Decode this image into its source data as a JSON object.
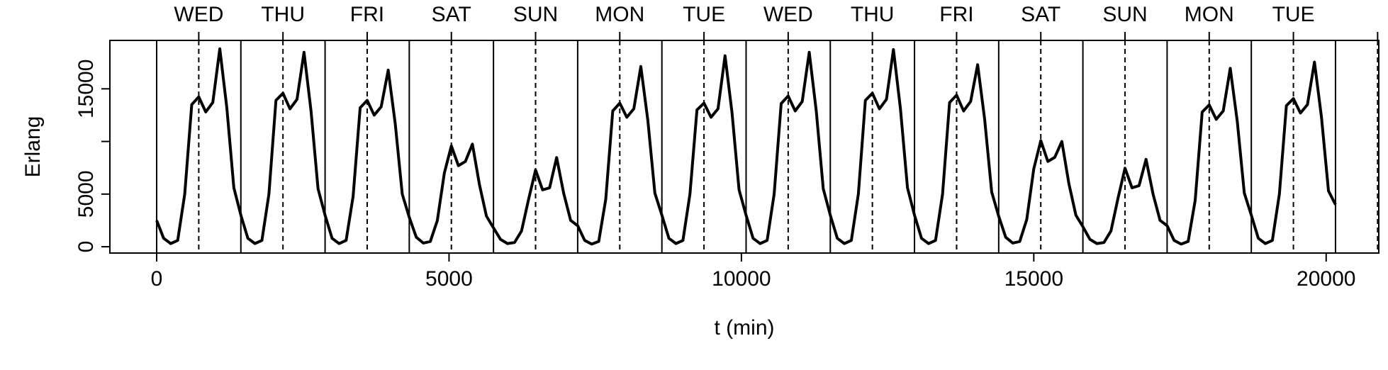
{
  "chart_data": {
    "type": "line",
    "xlabel": "t (min)",
    "ylabel": "Erlang",
    "color": "#000000",
    "x": [
      0,
      120,
      240,
      360,
      480,
      600,
      720,
      840,
      960,
      1080,
      1200,
      1320,
      1440,
      1560,
      1680,
      1800,
      1920,
      2040,
      2160,
      2280,
      2400,
      2520,
      2640,
      2760,
      2880,
      3000,
      3120,
      3240,
      3360,
      3480,
      3600,
      3720,
      3840,
      3960,
      4080,
      4200,
      4320,
      4440,
      4560,
      4680,
      4800,
      4920,
      5040,
      5160,
      5280,
      5400,
      5520,
      5640,
      5760,
      5880,
      6000,
      6120,
      6240,
      6360,
      6480,
      6600,
      6720,
      6840,
      6960,
      7080,
      7200,
      7320,
      7440,
      7560,
      7680,
      7800,
      7920,
      8040,
      8160,
      8280,
      8400,
      8520,
      8640,
      8760,
      8880,
      9000,
      9120,
      9240,
      9360,
      9480,
      9600,
      9720,
      9840,
      9960,
      10080,
      10200,
      10320,
      10440,
      10560,
      10680,
      10800,
      10920,
      11040,
      11160,
      11280,
      11400,
      11520,
      11640,
      11760,
      11880,
      12000,
      12120,
      12240,
      12360,
      12480,
      12600,
      12720,
      12840,
      12960,
      13080,
      13200,
      13320,
      13440,
      13560,
      13680,
      13800,
      13920,
      14040,
      14160,
      14280,
      14400,
      14520,
      14640,
      14760,
      14880,
      15000,
      15120,
      15240,
      15360,
      15480,
      15600,
      15720,
      15840,
      15960,
      16080,
      16200,
      16320,
      16440,
      16560,
      16680,
      16800,
      16920,
      17040,
      17160,
      17280,
      17400,
      17520,
      17640,
      17760,
      17880,
      18000,
      18120,
      18240,
      18360,
      18480,
      18600,
      18720,
      18840,
      18960,
      19080,
      19200,
      19320,
      19440,
      19560,
      19680,
      19800,
      19920,
      20040,
      20160
    ],
    "values": [
      2500,
      800,
      300,
      600,
      5000,
      13500,
      14240,
      12800,
      13700,
      18800,
      13200,
      5600,
      3000,
      800,
      300,
      600,
      5000,
      13900,
      14580,
      13100,
      14000,
      18470,
      12900,
      5500,
      3000,
      800,
      300,
      600,
      4800,
      13200,
      13900,
      12500,
      13300,
      16780,
      11700,
      5000,
      2800,
      900,
      350,
      500,
      2500,
      7000,
      9580,
      7700,
      8100,
      9750,
      5900,
      2900,
      1800,
      700,
      300,
      400,
      1500,
      4500,
      7290,
      5400,
      5600,
      8470,
      5100,
      2500,
      2000,
      600,
      250,
      500,
      4500,
      12900,
      13640,
      12300,
      13100,
      17120,
      12000,
      5100,
      3000,
      800,
      300,
      600,
      5000,
      13000,
      13640,
      12300,
      13100,
      18140,
      12700,
      5400,
      3000,
      800,
      300,
      600,
      5000,
      13600,
      14320,
      12900,
      13800,
      18470,
      12900,
      5500,
      3000,
      800,
      300,
      600,
      5000,
      13900,
      14580,
      13100,
      14000,
      18730,
      13100,
      5600,
      3000,
      800,
      300,
      600,
      5000,
      13700,
      14400,
      12900,
      13800,
      17290,
      12100,
      5200,
      2900,
      900,
      350,
      500,
      2600,
      7400,
      10080,
      8100,
      8500,
      10000,
      6000,
      3000,
      1900,
      700,
      300,
      400,
      1500,
      4600,
      7460,
      5600,
      5800,
      8300,
      5000,
      2500,
      2000,
      600,
      250,
      500,
      4400,
      12800,
      13470,
      12100,
      12900,
      16950,
      11900,
      5100,
      3000,
      800,
      300,
      600,
      5000,
      13400,
      14070,
      12700,
      13500,
      17540,
      12300,
      5300,
      4000
    ],
    "xlim": [
      -800,
      20900
    ],
    "xticks": [
      0,
      5000,
      10000,
      15000,
      20000
    ],
    "ylim": [
      -600,
      19600
    ],
    "yticks": [
      0,
      5000,
      {
        "value": 10000,
        "label": null
      },
      15000
    ],
    "day_lines": [
      0,
      1440,
      2880,
      4320,
      5760,
      7200,
      8640,
      10080,
      11520,
      12960,
      14400,
      15840,
      17280,
      18720,
      20160
    ],
    "noon_lines": [
      720,
      2160,
      3600,
      5040,
      6480,
      7920,
      9360,
      10800,
      12240,
      13680,
      15120,
      16560,
      18000,
      19440,
      20880
    ],
    "day_labels": [
      "WED",
      "THU",
      "FRI",
      "SAT",
      "SUN",
      "MON",
      "TUE",
      "WED",
      "THU",
      "FRI",
      "SAT",
      "SUN",
      "MON",
      "TUE",
      null
    ]
  }
}
